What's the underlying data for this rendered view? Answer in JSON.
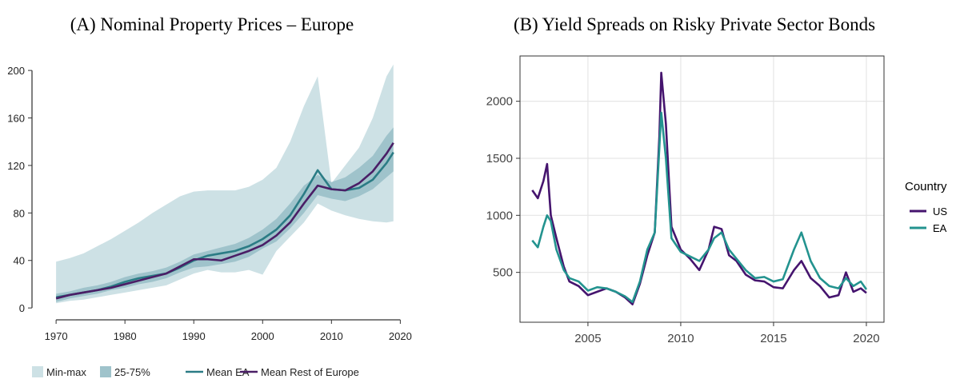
{
  "chart_data": [
    {
      "type": "area",
      "title": "(A) Nominal Property Prices – Europe",
      "x": [
        1970,
        1972,
        1974,
        1976,
        1978,
        1980,
        1982,
        1984,
        1986,
        1988,
        1990,
        1992,
        1994,
        1996,
        1998,
        2000,
        2002,
        2004,
        2006,
        2008,
        2010,
        2012,
        2014,
        2016,
        2018,
        2019
      ],
      "series": [
        {
          "name": "Min-max",
          "color": "#cde1e5",
          "low": [
            4,
            6,
            7,
            9,
            11,
            13,
            15,
            17,
            19,
            24,
            29,
            32,
            30,
            30,
            32,
            28,
            48,
            60,
            72,
            88,
            82,
            78,
            75,
            73,
            72,
            73
          ],
          "high": [
            39,
            42,
            46,
            52,
            58,
            65,
            72,
            80,
            87,
            94,
            98,
            99,
            99,
            99,
            102,
            108,
            118,
            140,
            170,
            195,
            105,
            120,
            135,
            160,
            195,
            205
          ]
        },
        {
          "name": "25-75%",
          "color": "#9fc3cb",
          "low": [
            5,
            8,
            10,
            12,
            15,
            17,
            20,
            22,
            25,
            30,
            34,
            35,
            37,
            39,
            43,
            50,
            56,
            67,
            80,
            95,
            92,
            90,
            94,
            100,
            110,
            115
          ],
          "high": [
            12,
            14,
            17,
            19,
            22,
            26,
            29,
            31,
            34,
            39,
            45,
            48,
            51,
            54,
            59,
            66,
            75,
            88,
            103,
            112,
            106,
            110,
            118,
            128,
            145,
            152
          ]
        },
        {
          "name": "Mean EA",
          "color": "#2b7c85",
          "values": [
            9,
            11,
            13,
            15,
            18,
            22,
            25,
            27,
            29,
            34,
            40,
            44,
            46,
            48,
            52,
            58,
            66,
            78,
            96,
            116,
            100,
            99,
            101,
            108,
            122,
            131
          ]
        },
        {
          "name": "Mean Rest of Europe",
          "color": "#4a1e66",
          "values": [
            8,
            11,
            13,
            15,
            17,
            20,
            23,
            26,
            29,
            35,
            41,
            41,
            40,
            44,
            48,
            53,
            61,
            72,
            88,
            103,
            100,
            99,
            105,
            115,
            130,
            139
          ]
        }
      ],
      "xlim": [
        1966.5,
        2021.7
      ],
      "xticks": [
        1970,
        1980,
        1990,
        2000,
        2010,
        2020
      ],
      "ylim": [
        -10,
        227
      ],
      "yticks": [
        0,
        40,
        80,
        120,
        160,
        200
      ],
      "grid": false,
      "legend": "bottom"
    },
    {
      "type": "line",
      "title": "(B) Yield Spreads on Risky Private Sector Bonds",
      "legend_title": "Country",
      "x": [
        2002.0,
        2002.3,
        2002.6,
        2002.8,
        2003.0,
        2003.3,
        2003.7,
        2004.0,
        2004.5,
        2005.0,
        2005.5,
        2006.0,
        2006.5,
        2007.0,
        2007.4,
        2007.8,
        2008.2,
        2008.6,
        2008.85,
        2008.95,
        2009.2,
        2009.5,
        2010.0,
        2010.5,
        2011.0,
        2011.5,
        2011.8,
        2012.2,
        2012.6,
        2013.0,
        2013.5,
        2014.0,
        2014.5,
        2015.0,
        2015.5,
        2016.1,
        2016.5,
        2017.0,
        2017.5,
        2018.0,
        2018.5,
        2018.9,
        2019.3,
        2019.7,
        2020.0
      ],
      "series": [
        {
          "name": "US",
          "color": "#45146e",
          "values": [
            1220,
            1150,
            1300,
            1450,
            1000,
            800,
            550,
            420,
            380,
            300,
            330,
            360,
            330,
            280,
            220,
            400,
            650,
            850,
            1700,
            2250,
            1800,
            900,
            700,
            620,
            520,
            700,
            900,
            880,
            650,
            600,
            480,
            430,
            420,
            370,
            360,
            520,
            600,
            450,
            380,
            280,
            300,
            500,
            330,
            360,
            320
          ]
        },
        {
          "name": "EA",
          "color": "#23938f",
          "values": [
            780,
            720,
            900,
            1000,
            950,
            700,
            520,
            450,
            420,
            340,
            370,
            360,
            330,
            290,
            240,
            420,
            700,
            850,
            1600,
            1900,
            1500,
            800,
            680,
            640,
            600,
            700,
            800,
            850,
            700,
            620,
            520,
            450,
            460,
            420,
            440,
            700,
            850,
            600,
            450,
            380,
            360,
            450,
            380,
            420,
            350
          ]
        }
      ],
      "xlim": [
        2001.34,
        2020.95
      ],
      "xticks": [
        2005,
        2010,
        2015,
        2020
      ],
      "ylim": [
        63,
        2397
      ],
      "yticks": [
        500,
        1000,
        1500,
        2000
      ],
      "grid": true,
      "legend": "right"
    }
  ]
}
